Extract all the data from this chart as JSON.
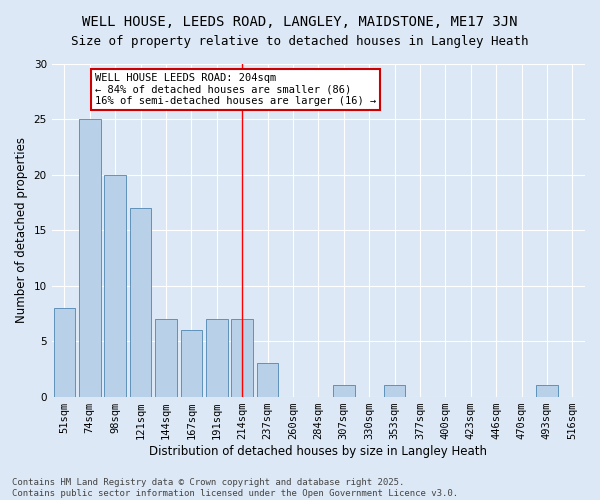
{
  "title": "WELL HOUSE, LEEDS ROAD, LANGLEY, MAIDSTONE, ME17 3JN",
  "subtitle": "Size of property relative to detached houses in Langley Heath",
  "xlabel": "Distribution of detached houses by size in Langley Heath",
  "ylabel": "Number of detached properties",
  "categories": [
    "51sqm",
    "74sqm",
    "98sqm",
    "121sqm",
    "144sqm",
    "167sqm",
    "191sqm",
    "214sqm",
    "237sqm",
    "260sqm",
    "284sqm",
    "307sqm",
    "330sqm",
    "353sqm",
    "377sqm",
    "400sqm",
    "423sqm",
    "446sqm",
    "470sqm",
    "493sqm",
    "516sqm"
  ],
  "values": [
    8,
    25,
    20,
    17,
    7,
    6,
    7,
    7,
    3,
    0,
    0,
    1,
    0,
    1,
    0,
    0,
    0,
    0,
    0,
    1,
    0
  ],
  "bar_color": "#b8d0e8",
  "bar_edge_color": "#4f86b0",
  "ylim": [
    0,
    30
  ],
  "yticks": [
    0,
    5,
    10,
    15,
    20,
    25,
    30
  ],
  "vline_x": 7.0,
  "annotation_text": "WELL HOUSE LEEDS ROAD: 204sqm\n← 84% of detached houses are smaller (86)\n16% of semi-detached houses are larger (16) →",
  "annotation_box_color": "#ffffff",
  "annotation_box_edge_color": "#cc0000",
  "background_color": "#dce8f5",
  "footer_line1": "Contains HM Land Registry data © Crown copyright and database right 2025.",
  "footer_line2": "Contains public sector information licensed under the Open Government Licence v3.0.",
  "title_fontsize": 10,
  "subtitle_fontsize": 9,
  "xlabel_fontsize": 8.5,
  "ylabel_fontsize": 8.5,
  "tick_fontsize": 7.5,
  "annotation_fontsize": 7.5,
  "footer_fontsize": 6.5,
  "bar_width": 0.85
}
